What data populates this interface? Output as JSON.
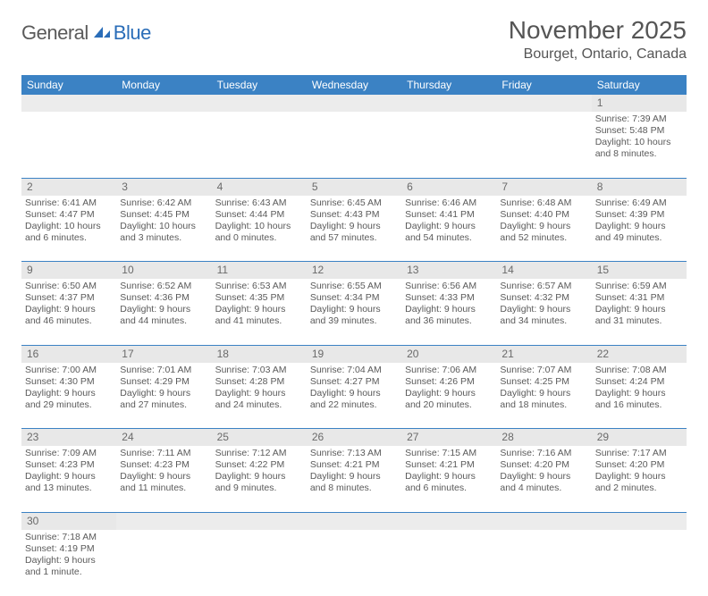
{
  "logo": {
    "part1": "General",
    "part2": "Blue"
  },
  "title": "November 2025",
  "location": "Bourget, Ontario, Canada",
  "colors": {
    "header_bg": "#3b82c4",
    "header_text": "#ffffff",
    "daynum_bg": "#e8e8e8",
    "row_divider": "#3b82c4",
    "text": "#5a5a5a",
    "logo_gray": "#5a5a5a",
    "logo_blue": "#2a6db8"
  },
  "daysOfWeek": [
    "Sunday",
    "Monday",
    "Tuesday",
    "Wednesday",
    "Thursday",
    "Friday",
    "Saturday"
  ],
  "weeks": [
    {
      "nums": [
        "",
        "",
        "",
        "",
        "",
        "",
        "1"
      ],
      "cells": [
        null,
        null,
        null,
        null,
        null,
        null,
        {
          "sr": "7:39 AM",
          "ss": "5:48 PM",
          "dl": "10 hours and 8 minutes."
        }
      ]
    },
    {
      "nums": [
        "2",
        "3",
        "4",
        "5",
        "6",
        "7",
        "8"
      ],
      "cells": [
        {
          "sr": "6:41 AM",
          "ss": "4:47 PM",
          "dl": "10 hours and 6 minutes."
        },
        {
          "sr": "6:42 AM",
          "ss": "4:45 PM",
          "dl": "10 hours and 3 minutes."
        },
        {
          "sr": "6:43 AM",
          "ss": "4:44 PM",
          "dl": "10 hours and 0 minutes."
        },
        {
          "sr": "6:45 AM",
          "ss": "4:43 PM",
          "dl": "9 hours and 57 minutes."
        },
        {
          "sr": "6:46 AM",
          "ss": "4:41 PM",
          "dl": "9 hours and 54 minutes."
        },
        {
          "sr": "6:48 AM",
          "ss": "4:40 PM",
          "dl": "9 hours and 52 minutes."
        },
        {
          "sr": "6:49 AM",
          "ss": "4:39 PM",
          "dl": "9 hours and 49 minutes."
        }
      ]
    },
    {
      "nums": [
        "9",
        "10",
        "11",
        "12",
        "13",
        "14",
        "15"
      ],
      "cells": [
        {
          "sr": "6:50 AM",
          "ss": "4:37 PM",
          "dl": "9 hours and 46 minutes."
        },
        {
          "sr": "6:52 AM",
          "ss": "4:36 PM",
          "dl": "9 hours and 44 minutes."
        },
        {
          "sr": "6:53 AM",
          "ss": "4:35 PM",
          "dl": "9 hours and 41 minutes."
        },
        {
          "sr": "6:55 AM",
          "ss": "4:34 PM",
          "dl": "9 hours and 39 minutes."
        },
        {
          "sr": "6:56 AM",
          "ss": "4:33 PM",
          "dl": "9 hours and 36 minutes."
        },
        {
          "sr": "6:57 AM",
          "ss": "4:32 PM",
          "dl": "9 hours and 34 minutes."
        },
        {
          "sr": "6:59 AM",
          "ss": "4:31 PM",
          "dl": "9 hours and 31 minutes."
        }
      ]
    },
    {
      "nums": [
        "16",
        "17",
        "18",
        "19",
        "20",
        "21",
        "22"
      ],
      "cells": [
        {
          "sr": "7:00 AM",
          "ss": "4:30 PM",
          "dl": "9 hours and 29 minutes."
        },
        {
          "sr": "7:01 AM",
          "ss": "4:29 PM",
          "dl": "9 hours and 27 minutes."
        },
        {
          "sr": "7:03 AM",
          "ss": "4:28 PM",
          "dl": "9 hours and 24 minutes."
        },
        {
          "sr": "7:04 AM",
          "ss": "4:27 PM",
          "dl": "9 hours and 22 minutes."
        },
        {
          "sr": "7:06 AM",
          "ss": "4:26 PM",
          "dl": "9 hours and 20 minutes."
        },
        {
          "sr": "7:07 AM",
          "ss": "4:25 PM",
          "dl": "9 hours and 18 minutes."
        },
        {
          "sr": "7:08 AM",
          "ss": "4:24 PM",
          "dl": "9 hours and 16 minutes."
        }
      ]
    },
    {
      "nums": [
        "23",
        "24",
        "25",
        "26",
        "27",
        "28",
        "29"
      ],
      "cells": [
        {
          "sr": "7:09 AM",
          "ss": "4:23 PM",
          "dl": "9 hours and 13 minutes."
        },
        {
          "sr": "7:11 AM",
          "ss": "4:23 PM",
          "dl": "9 hours and 11 minutes."
        },
        {
          "sr": "7:12 AM",
          "ss": "4:22 PM",
          "dl": "9 hours and 9 minutes."
        },
        {
          "sr": "7:13 AM",
          "ss": "4:21 PM",
          "dl": "9 hours and 8 minutes."
        },
        {
          "sr": "7:15 AM",
          "ss": "4:21 PM",
          "dl": "9 hours and 6 minutes."
        },
        {
          "sr": "7:16 AM",
          "ss": "4:20 PM",
          "dl": "9 hours and 4 minutes."
        },
        {
          "sr": "7:17 AM",
          "ss": "4:20 PM",
          "dl": "9 hours and 2 minutes."
        }
      ]
    },
    {
      "nums": [
        "30",
        "",
        "",
        "",
        "",
        "",
        ""
      ],
      "cells": [
        {
          "sr": "7:18 AM",
          "ss": "4:19 PM",
          "dl": "9 hours and 1 minute."
        },
        null,
        null,
        null,
        null,
        null,
        null
      ]
    }
  ],
  "labels": {
    "sunrise": "Sunrise:",
    "sunset": "Sunset:",
    "daylight": "Daylight:"
  }
}
